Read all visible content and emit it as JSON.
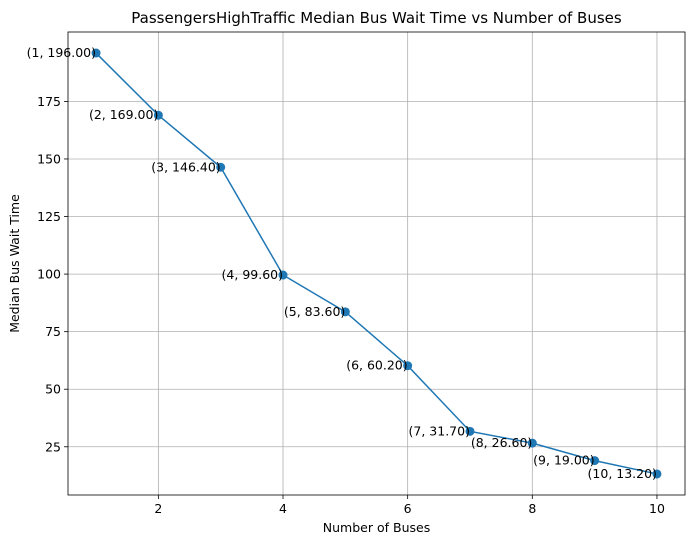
{
  "chart_data": {
    "type": "line",
    "title": "PassengersHighTraffic Median Bus Wait Time vs Number of Buses",
    "xlabel": "Number of Buses",
    "ylabel": "Median Bus Wait Time",
    "x": [
      1,
      2,
      3,
      4,
      5,
      6,
      7,
      8,
      9,
      10
    ],
    "series": [
      {
        "values": [
          196.0,
          169.0,
          146.4,
          99.6,
          83.6,
          60.2,
          31.7,
          26.6,
          19.0,
          13.2
        ],
        "color": "#1f77b4",
        "marker": "circle"
      }
    ],
    "data_labels": [
      "(1, 196.00)",
      "(2, 169.00)",
      "(3, 146.40)",
      "(4, 99.60)",
      "(5, 83.60)",
      "(6, 60.20)",
      "(7, 31.70)",
      "(8, 26.60)",
      "(9, 19.00)",
      "(10, 13.20)"
    ],
    "xticks": [
      2,
      4,
      6,
      8,
      10
    ],
    "yticks": [
      25,
      50,
      75,
      100,
      125,
      150,
      175
    ],
    "xlim": [
      0.55,
      10.45
    ],
    "ylim": [
      4.06,
      205.14
    ],
    "grid": true
  }
}
